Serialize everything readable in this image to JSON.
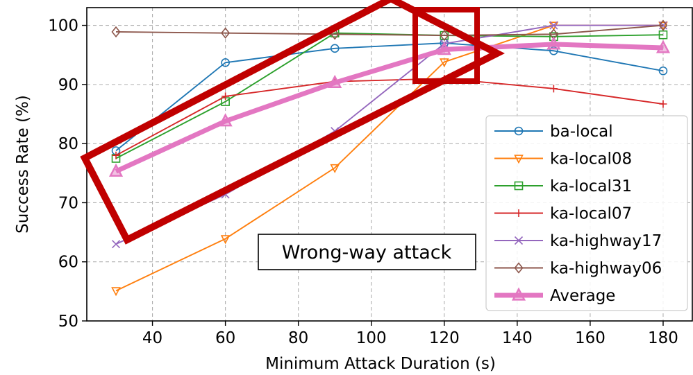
{
  "chart_data": {
    "type": "line",
    "xlabel": "Minimum Attack Duration (s)",
    "ylabel": "Success Rate (%)",
    "xlim": [
      22,
      188
    ],
    "ylim": [
      50,
      103
    ],
    "xticks": [
      40,
      60,
      80,
      100,
      120,
      140,
      160,
      180
    ],
    "yticks": [
      50,
      60,
      70,
      80,
      90,
      100
    ],
    "grid": true,
    "legend_position": "right",
    "annotation": "Wrong-way attack",
    "x": [
      30,
      60,
      90,
      120,
      150,
      180
    ],
    "series": [
      {
        "name": "ba-local",
        "color": "#1f77b4",
        "marker": "circle",
        "values": [
          78.8,
          93.7,
          96.1,
          97.0,
          95.7,
          92.3
        ]
      },
      {
        "name": "ka-local08",
        "color": "#ff7f0e",
        "marker": "triangle-down",
        "values": [
          55.1,
          63.9,
          75.9,
          93.8,
          100.0,
          100.0
        ]
      },
      {
        "name": "ka-local31",
        "color": "#2ca02c",
        "marker": "square",
        "values": [
          77.5,
          87.1,
          98.7,
          98.3,
          98.1,
          98.4
        ]
      },
      {
        "name": "ka-local07",
        "color": "#d62728",
        "marker": "plus",
        "values": [
          78.0,
          88.0,
          90.5,
          91.0,
          89.3,
          86.7
        ]
      },
      {
        "name": "ka-highway17",
        "color": "#9467bd",
        "marker": "x",
        "values": [
          63.0,
          71.4,
          82.1,
          96.9,
          100.0,
          100.0
        ]
      },
      {
        "name": "ka-highway06",
        "color": "#8c564b",
        "marker": "diamond",
        "values": [
          98.9,
          98.7,
          98.5,
          98.3,
          98.5,
          100.0
        ]
      },
      {
        "name": "Average",
        "color": "#e377c2",
        "marker": "triangle-up",
        "thick": true,
        "values": [
          75.3,
          83.8,
          90.3,
          95.9,
          96.8,
          96.2
        ]
      }
    ],
    "highlights": [
      {
        "shape": "rotated-rectangle",
        "color": "#c00000",
        "around": "x 30–130 region"
      },
      {
        "shape": "rectangle",
        "color": "#c00000",
        "around": "x 120"
      }
    ]
  }
}
